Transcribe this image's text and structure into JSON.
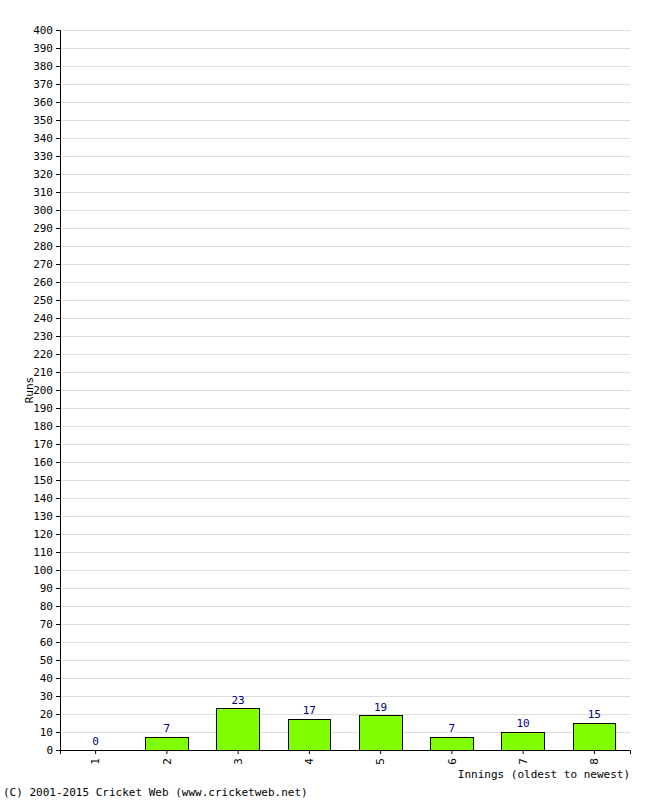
{
  "chart_data": {
    "type": "bar",
    "x_label": "Innings (oldest to newest)",
    "y_label": "Runs",
    "annotations": [
      "(C) 2001-2015 Cricket Web (www.cricketweb.net)"
    ],
    "categories": [
      "1",
      "2",
      "3",
      "4",
      "5",
      "6",
      "7",
      "8"
    ],
    "values": [
      0,
      7,
      23,
      17,
      19,
      7,
      10,
      15
    ],
    "color": "#80ff00",
    "ylim": [
      0,
      400
    ],
    "yticks": [
      0,
      10,
      20,
      30,
      40,
      50,
      60,
      70,
      80,
      90,
      100,
      110,
      120,
      130,
      140,
      150,
      160,
      170,
      180,
      190,
      200,
      210,
      220,
      230,
      240,
      250,
      260,
      270,
      280,
      290,
      300,
      310,
      320,
      330,
      340,
      350,
      360,
      370,
      380,
      390,
      400
    ],
    "grid": true,
    "data_labels": true
  }
}
